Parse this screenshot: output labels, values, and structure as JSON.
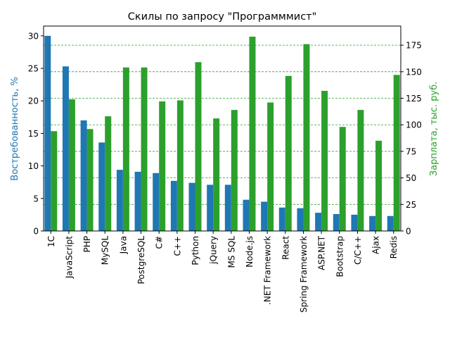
{
  "chart_data": {
    "type": "bar",
    "title": "Скилы по запросу \"Программмист\"",
    "categories": [
      "1C",
      "JavaScript",
      "PHP",
      "MySQL",
      "Java",
      "PostgreSQL",
      "C#",
      "C++",
      "Python",
      "jQuery",
      "MS SQL",
      "Node.js",
      ".NET Framework",
      "React",
      "Spring Framework",
      "ASP.NET",
      "Bootstrap",
      "C/C++",
      "Ajax",
      "Redis"
    ],
    "series": [
      {
        "axis": "left",
        "color": "#1f77b4",
        "values": [
          30.0,
          25.3,
          17.0,
          13.6,
          9.4,
          9.1,
          8.9,
          7.7,
          7.4,
          7.1,
          7.1,
          4.8,
          4.5,
          3.6,
          3.5,
          2.8,
          2.6,
          2.5,
          2.3,
          2.3
        ]
      },
      {
        "axis": "right",
        "color": "#2ca02c",
        "values": [
          94,
          124,
          96,
          108,
          154,
          154,
          122,
          123,
          159,
          106,
          114,
          183,
          121,
          146,
          176,
          132,
          98,
          114,
          85,
          147
        ]
      }
    ],
    "ylabel_left": "Востребованность, %",
    "ylabel_right": "Зарплата, тыс. руб.",
    "ylabel_left_color": "#1f77b4",
    "ylabel_right_color": "#2ca02c",
    "ylim_left": [
      0,
      31.5
    ],
    "ylim_right": [
      0,
      193
    ],
    "yticks_left": [
      0,
      5,
      10,
      15,
      20,
      25,
      30
    ],
    "yticks_right": [
      0,
      25,
      50,
      75,
      100,
      125,
      150,
      175
    ],
    "grid": {
      "axis": "right",
      "style": "dashed",
      "color": "#2ca02c"
    },
    "legend": "none"
  }
}
